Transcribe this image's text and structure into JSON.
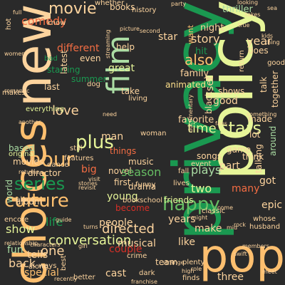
{
  "palette": {
    "background": "#2a2a2a",
    "orange": "#fdbf6f",
    "peach": "#fdd49e",
    "yellow": "#e6f598",
    "lightgreen": "#abdda4",
    "green": "#1a9850",
    "midgreen": "#66bd63",
    "red": "#d73027",
    "darkred": "#b2182b",
    "salmon": "#f46d43",
    "cream": "#fee08b"
  },
  "words": [
    {
      "text": "privacy"
    },
    {
      "text": "policy"
    },
    {
      "text": "choices"
    },
    {
      "text": "new"
    },
    {
      "text": "pop"
    },
    {
      "text": "film"
    },
    {
      "text": "hour"
    },
    {
      "text": "plus"
    },
    {
      "text": "culture"
    },
    {
      "text": "series"
    },
    {
      "text": "happy"
    },
    {
      "text": "stars"
    },
    {
      "text": "movie"
    },
    {
      "text": "love"
    },
    {
      "text": "time"
    },
    {
      "text": "comedy"
    },
    {
      "text": "conversation"
    },
    {
      "text": "directed"
    },
    {
      "text": "also"
    },
    {
      "text": "life"
    },
    {
      "text": "one"
    },
    {
      "text": "story"
    },
    {
      "text": "year"
    },
    {
      "text": "thriller"
    },
    {
      "text": "night"
    },
    {
      "text": "hit"
    },
    {
      "text": "want"
    },
    {
      "text": "family"
    },
    {
      "text": "animated"
    },
    {
      "text": "shows"
    },
    {
      "text": "good"
    },
    {
      "text": "favorite"
    },
    {
      "text": "man"
    },
    {
      "text": "star"
    },
    {
      "text": "different"
    },
    {
      "text": "summer"
    },
    {
      "text": "great"
    },
    {
      "text": "help"
    },
    {
      "text": "things"
    },
    {
      "text": "music"
    },
    {
      "text": "novel"
    },
    {
      "text": "first"
    },
    {
      "text": "season"
    },
    {
      "text": "drama"
    },
    {
      "text": "young"
    },
    {
      "text": "friends"
    },
    {
      "text": "plays"
    },
    {
      "text": "two"
    },
    {
      "text": "part"
    },
    {
      "text": "many"
    },
    {
      "text": "got"
    },
    {
      "text": "epic"
    },
    {
      "text": "show"
    },
    {
      "text": "make"
    },
    {
      "text": "years"
    },
    {
      "text": "people"
    },
    {
      "text": "musical"
    },
    {
      "text": "like"
    },
    {
      "text": "fun"
    },
    {
      "text": "tells"
    },
    {
      "text": "back"
    },
    {
      "text": "special"
    },
    {
      "text": "cast"
    },
    {
      "text": "couple"
    },
    {
      "text": "three"
    },
    {
      "text": "movies"
    },
    {
      "text": "director"
    },
    {
      "text": "world"
    },
    {
      "text": "album"
    },
    {
      "text": "based"
    },
    {
      "text": "original"
    },
    {
      "text": "last"
    },
    {
      "text": "starring"
    },
    {
      "text": "latest"
    },
    {
      "text": "even"
    },
    {
      "text": "books"
    },
    {
      "text": "history"
    },
    {
      "text": "whether"
    },
    {
      "text": "know"
    },
    {
      "text": "bad"
    },
    {
      "text": "dog"
    },
    {
      "text": "take"
    },
    {
      "text": "living"
    },
    {
      "text": "does"
    },
    {
      "text": "set"
    },
    {
      "text": "black"
    },
    {
      "text": "talk"
    },
    {
      "text": "together"
    },
    {
      "text": "made"
    },
    {
      "text": "lot"
    },
    {
      "text": "think"
    },
    {
      "text": "around"
    },
    {
      "text": "talking"
    },
    {
      "text": "big"
    },
    {
      "text": "features"
    },
    {
      "text": "still"
    },
    {
      "text": "dance"
    },
    {
      "text": "everything"
    },
    {
      "text": "place"
    },
    {
      "text": "encore"
    },
    {
      "text": "ways"
    },
    {
      "text": "best"
    },
    {
      "text": "along"
    },
    {
      "text": "become"
    },
    {
      "text": "team"
    },
    {
      "text": "dark"
    },
    {
      "text": "finds"
    },
    {
      "text": "plenty"
    },
    {
      "text": "better"
    },
    {
      "text": "crime"
    },
    {
      "text": "school"
    },
    {
      "text": "book"
    },
    {
      "text": "funny"
    },
    {
      "text": "songs"
    },
    {
      "text": "event"
    },
    {
      "text": "fall"
    },
    {
      "text": "lives"
    },
    {
      "text": "classic"
    },
    {
      "text": "husband"
    },
    {
      "text": "whose"
    },
    {
      "text": "game"
    },
    {
      "text": "return"
    },
    {
      "text": "good"
    },
    {
      "text": "kids"
    },
    {
      "text": "thing"
    },
    {
      "text": "makes"
    },
    {
      "text": "romantic"
    },
    {
      "text": "women"
    },
    {
      "text": "hot"
    },
    {
      "text": "full"
    },
    {
      "text": "sea"
    },
    {
      "text": "woman"
    },
    {
      "text": "streaming"
    },
    {
      "text": "true"
    },
    {
      "text": "visit"
    },
    {
      "text": "stories"
    },
    {
      "text": "revisit"
    },
    {
      "text": "returns"
    },
    {
      "text": "another"
    },
    {
      "text": "high"
    },
    {
      "text": "strange"
    },
    {
      "text": "meet"
    },
    {
      "text": "franchise"
    },
    {
      "text": "turns"
    },
    {
      "text": "girl"
    },
    {
      "text": "recently"
    },
    {
      "text": "characters"
    },
    {
      "text": "swift"
    },
    {
      "text": "members"
    },
    {
      "text": "rock"
    },
    {
      "text": "relationship"
    },
    {
      "text": "guide"
    },
    {
      "text": "picture"
    },
    {
      "text": "looking"
    },
    {
      "text": "second"
    },
    {
      "text": "need"
    },
    {
      "text": "fans"
    },
    {
      "text": "takes"
    },
    {
      "text": "something"
    },
    {
      "text": "documentary"
    },
    {
      "text": "might"
    },
    {
      "text": "role"
    },
    {
      "text": "come"
    },
    {
      "text": "mid"
    },
    {
      "text": "party"
    }
  ]
}
